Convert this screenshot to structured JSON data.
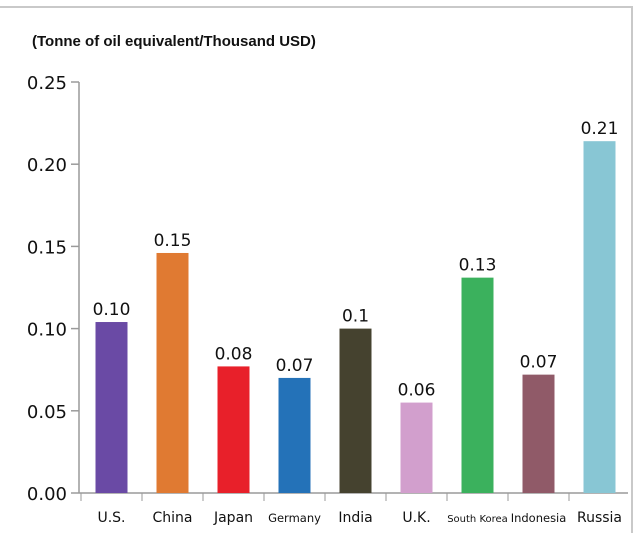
{
  "chart_data": {
    "type": "bar",
    "unit_label": "(Tonne of oil equivalent/Thousand USD)",
    "categories": [
      "U.S.",
      "China",
      "Japan",
      "Germany",
      "India",
      "U.K.",
      "South Korea",
      "Indonesia",
      "Russia"
    ],
    "values": [
      0.104,
      0.146,
      0.077,
      0.07,
      0.1,
      0.055,
      0.131,
      0.072,
      0.214
    ],
    "data_labels": [
      "0.10",
      "0.15",
      "0.08",
      "0.07",
      "0.1",
      "0.06",
      "0.13",
      "0.07",
      "0.21"
    ],
    "colors": [
      "#6a4aa5",
      "#e07a32",
      "#e8202a",
      "#2472b8",
      "#45422f",
      "#d29fcd",
      "#3bb15d",
      "#905a68",
      "#88c6d4"
    ],
    "ylim": [
      0,
      0.25
    ],
    "yticks": [
      "0.00",
      "0.05",
      "0.10",
      "0.15",
      "0.20",
      "0.25"
    ],
    "grid": false,
    "legend": "none"
  }
}
